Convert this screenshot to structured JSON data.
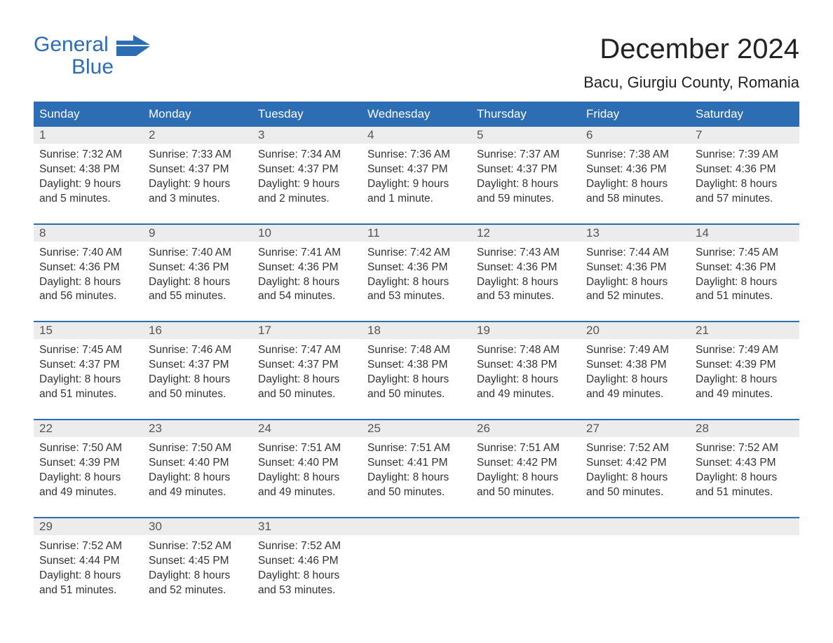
{
  "logo": {
    "line1": "General",
    "line2": "Blue"
  },
  "brand_color": "#2d6db3",
  "title": "December 2024",
  "subtitle": "Bacu, Giurgiu County, Romania",
  "day_headers": [
    "Sunday",
    "Monday",
    "Tuesday",
    "Wednesday",
    "Thursday",
    "Friday",
    "Saturday"
  ],
  "weeks": [
    [
      {
        "n": "1",
        "sunrise": "Sunrise: 7:32 AM",
        "sunset": "Sunset: 4:38 PM",
        "dl1": "Daylight: 9 hours",
        "dl2": "and 5 minutes."
      },
      {
        "n": "2",
        "sunrise": "Sunrise: 7:33 AM",
        "sunset": "Sunset: 4:37 PM",
        "dl1": "Daylight: 9 hours",
        "dl2": "and 3 minutes."
      },
      {
        "n": "3",
        "sunrise": "Sunrise: 7:34 AM",
        "sunset": "Sunset: 4:37 PM",
        "dl1": "Daylight: 9 hours",
        "dl2": "and 2 minutes."
      },
      {
        "n": "4",
        "sunrise": "Sunrise: 7:36 AM",
        "sunset": "Sunset: 4:37 PM",
        "dl1": "Daylight: 9 hours",
        "dl2": "and 1 minute."
      },
      {
        "n": "5",
        "sunrise": "Sunrise: 7:37 AM",
        "sunset": "Sunset: 4:37 PM",
        "dl1": "Daylight: 8 hours",
        "dl2": "and 59 minutes."
      },
      {
        "n": "6",
        "sunrise": "Sunrise: 7:38 AM",
        "sunset": "Sunset: 4:36 PM",
        "dl1": "Daylight: 8 hours",
        "dl2": "and 58 minutes."
      },
      {
        "n": "7",
        "sunrise": "Sunrise: 7:39 AM",
        "sunset": "Sunset: 4:36 PM",
        "dl1": "Daylight: 8 hours",
        "dl2": "and 57 minutes."
      }
    ],
    [
      {
        "n": "8",
        "sunrise": "Sunrise: 7:40 AM",
        "sunset": "Sunset: 4:36 PM",
        "dl1": "Daylight: 8 hours",
        "dl2": "and 56 minutes."
      },
      {
        "n": "9",
        "sunrise": "Sunrise: 7:40 AM",
        "sunset": "Sunset: 4:36 PM",
        "dl1": "Daylight: 8 hours",
        "dl2": "and 55 minutes."
      },
      {
        "n": "10",
        "sunrise": "Sunrise: 7:41 AM",
        "sunset": "Sunset: 4:36 PM",
        "dl1": "Daylight: 8 hours",
        "dl2": "and 54 minutes."
      },
      {
        "n": "11",
        "sunrise": "Sunrise: 7:42 AM",
        "sunset": "Sunset: 4:36 PM",
        "dl1": "Daylight: 8 hours",
        "dl2": "and 53 minutes."
      },
      {
        "n": "12",
        "sunrise": "Sunrise: 7:43 AM",
        "sunset": "Sunset: 4:36 PM",
        "dl1": "Daylight: 8 hours",
        "dl2": "and 53 minutes."
      },
      {
        "n": "13",
        "sunrise": "Sunrise: 7:44 AM",
        "sunset": "Sunset: 4:36 PM",
        "dl1": "Daylight: 8 hours",
        "dl2": "and 52 minutes."
      },
      {
        "n": "14",
        "sunrise": "Sunrise: 7:45 AM",
        "sunset": "Sunset: 4:36 PM",
        "dl1": "Daylight: 8 hours",
        "dl2": "and 51 minutes."
      }
    ],
    [
      {
        "n": "15",
        "sunrise": "Sunrise: 7:45 AM",
        "sunset": "Sunset: 4:37 PM",
        "dl1": "Daylight: 8 hours",
        "dl2": "and 51 minutes."
      },
      {
        "n": "16",
        "sunrise": "Sunrise: 7:46 AM",
        "sunset": "Sunset: 4:37 PM",
        "dl1": "Daylight: 8 hours",
        "dl2": "and 50 minutes."
      },
      {
        "n": "17",
        "sunrise": "Sunrise: 7:47 AM",
        "sunset": "Sunset: 4:37 PM",
        "dl1": "Daylight: 8 hours",
        "dl2": "and 50 minutes."
      },
      {
        "n": "18",
        "sunrise": "Sunrise: 7:48 AM",
        "sunset": "Sunset: 4:38 PM",
        "dl1": "Daylight: 8 hours",
        "dl2": "and 50 minutes."
      },
      {
        "n": "19",
        "sunrise": "Sunrise: 7:48 AM",
        "sunset": "Sunset: 4:38 PM",
        "dl1": "Daylight: 8 hours",
        "dl2": "and 49 minutes."
      },
      {
        "n": "20",
        "sunrise": "Sunrise: 7:49 AM",
        "sunset": "Sunset: 4:38 PM",
        "dl1": "Daylight: 8 hours",
        "dl2": "and 49 minutes."
      },
      {
        "n": "21",
        "sunrise": "Sunrise: 7:49 AM",
        "sunset": "Sunset: 4:39 PM",
        "dl1": "Daylight: 8 hours",
        "dl2": "and 49 minutes."
      }
    ],
    [
      {
        "n": "22",
        "sunrise": "Sunrise: 7:50 AM",
        "sunset": "Sunset: 4:39 PM",
        "dl1": "Daylight: 8 hours",
        "dl2": "and 49 minutes."
      },
      {
        "n": "23",
        "sunrise": "Sunrise: 7:50 AM",
        "sunset": "Sunset: 4:40 PM",
        "dl1": "Daylight: 8 hours",
        "dl2": "and 49 minutes."
      },
      {
        "n": "24",
        "sunrise": "Sunrise: 7:51 AM",
        "sunset": "Sunset: 4:40 PM",
        "dl1": "Daylight: 8 hours",
        "dl2": "and 49 minutes."
      },
      {
        "n": "25",
        "sunrise": "Sunrise: 7:51 AM",
        "sunset": "Sunset: 4:41 PM",
        "dl1": "Daylight: 8 hours",
        "dl2": "and 50 minutes."
      },
      {
        "n": "26",
        "sunrise": "Sunrise: 7:51 AM",
        "sunset": "Sunset: 4:42 PM",
        "dl1": "Daylight: 8 hours",
        "dl2": "and 50 minutes."
      },
      {
        "n": "27",
        "sunrise": "Sunrise: 7:52 AM",
        "sunset": "Sunset: 4:42 PM",
        "dl1": "Daylight: 8 hours",
        "dl2": "and 50 minutes."
      },
      {
        "n": "28",
        "sunrise": "Sunrise: 7:52 AM",
        "sunset": "Sunset: 4:43 PM",
        "dl1": "Daylight: 8 hours",
        "dl2": "and 51 minutes."
      }
    ],
    [
      {
        "n": "29",
        "sunrise": "Sunrise: 7:52 AM",
        "sunset": "Sunset: 4:44 PM",
        "dl1": "Daylight: 8 hours",
        "dl2": "and 51 minutes."
      },
      {
        "n": "30",
        "sunrise": "Sunrise: 7:52 AM",
        "sunset": "Sunset: 4:45 PM",
        "dl1": "Daylight: 8 hours",
        "dl2": "and 52 minutes."
      },
      {
        "n": "31",
        "sunrise": "Sunrise: 7:52 AM",
        "sunset": "Sunset: 4:46 PM",
        "dl1": "Daylight: 8 hours",
        "dl2": "and 53 minutes."
      },
      null,
      null,
      null,
      null
    ]
  ]
}
